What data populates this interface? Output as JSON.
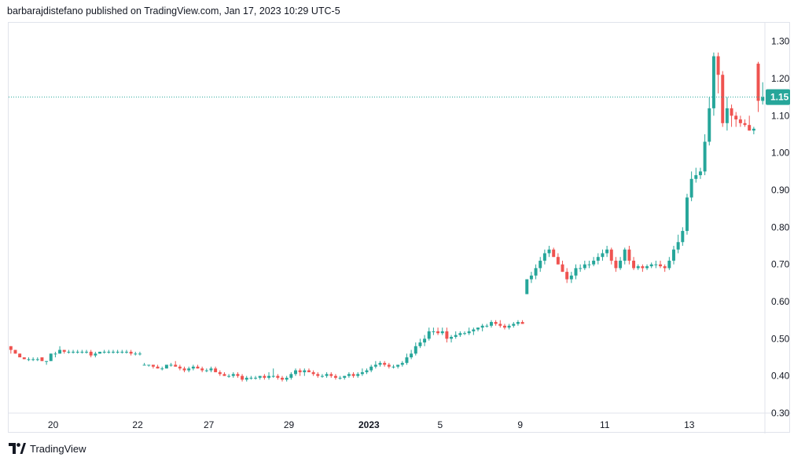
{
  "header": {
    "published": "barbarajdistefano published on TradingView.com, Jan 17, 2023 10:29 UTC-5"
  },
  "footer": {
    "brand": "TradingView",
    "logo_text": "TV"
  },
  "colors": {
    "up": "#26a69a",
    "down": "#ef5350",
    "price_line": "#26a69a",
    "text": "#131722",
    "grid": "#e0e3eb"
  },
  "chart_data": {
    "type": "candlestick",
    "title": "",
    "ylim": [
      0.3,
      1.35
    ],
    "y_ticks": [
      "1.30",
      "1.20",
      "1.10",
      "1.00",
      "0.90",
      "0.80",
      "0.70",
      "0.60",
      "0.50",
      "0.40",
      "0.30"
    ],
    "x_ticks": [
      {
        "label": "20",
        "pos": 10,
        "bold": false
      },
      {
        "label": "22",
        "pos": 29,
        "bold": false
      },
      {
        "label": "27",
        "pos": 45,
        "bold": false
      },
      {
        "label": "29",
        "pos": 63,
        "bold": false
      },
      {
        "label": "2023",
        "pos": 81,
        "bold": true
      },
      {
        "label": "5",
        "pos": 97,
        "bold": false
      },
      {
        "label": "9",
        "pos": 115,
        "bold": false
      },
      {
        "label": "11",
        "pos": 134,
        "bold": false
      },
      {
        "label": "13",
        "pos": 153,
        "bold": false
      }
    ],
    "last_price": 1.15,
    "last_price_label": "1.15",
    "x_range": [
      0,
      170
    ],
    "candles": [
      [
        0.48,
        0.48,
        0.46,
        0.47
      ],
      [
        0.47,
        0.47,
        0.46,
        0.46
      ],
      [
        0.46,
        0.46,
        0.45,
        0.45
      ],
      [
        0.45,
        0.45,
        0.445,
        0.445
      ],
      [
        0.445,
        0.45,
        0.44,
        0.445
      ],
      [
        0.445,
        0.45,
        0.44,
        0.445
      ],
      [
        0.445,
        0.45,
        0.44,
        0.445
      ],
      [
        0.45,
        0.45,
        0.44,
        0.44
      ],
      [
        0.44,
        0.44,
        0.43,
        0.44
      ],
      [
        0.44,
        0.46,
        0.44,
        0.46
      ],
      [
        0.46,
        0.465,
        0.45,
        0.46
      ],
      [
        0.46,
        0.48,
        0.46,
        0.47
      ],
      [
        0.47,
        0.47,
        0.46,
        0.465
      ],
      [
        0.465,
        0.47,
        0.46,
        0.465
      ],
      [
        0.465,
        0.47,
        0.46,
        0.465
      ],
      [
        0.465,
        0.47,
        0.46,
        0.465
      ],
      [
        0.465,
        0.47,
        0.46,
        0.465
      ],
      [
        0.465,
        0.47,
        0.46,
        0.465
      ],
      [
        0.465,
        0.47,
        0.45,
        0.455
      ],
      [
        0.455,
        0.465,
        0.45,
        0.46
      ],
      [
        0.46,
        0.465,
        0.46,
        0.465
      ],
      [
        0.465,
        0.47,
        0.46,
        0.465
      ],
      [
        0.465,
        0.47,
        0.46,
        0.465
      ],
      [
        0.465,
        0.47,
        0.46,
        0.465
      ],
      [
        0.465,
        0.47,
        0.46,
        0.465
      ],
      [
        0.465,
        0.47,
        0.46,
        0.465
      ],
      [
        0.465,
        0.47,
        0.46,
        0.465
      ],
      [
        0.465,
        0.47,
        0.455,
        0.46
      ],
      [
        0.46,
        0.465,
        0.455,
        0.46
      ],
      [
        0.46,
        0.465,
        0.455,
        0.46
      ],
      [
        0.43,
        0.435,
        0.43,
        0.43
      ],
      [
        0.43,
        0.43,
        0.425,
        0.43
      ],
      [
        0.43,
        0.43,
        0.42,
        0.425
      ],
      [
        0.425,
        0.43,
        0.42,
        0.42
      ],
      [
        0.42,
        0.425,
        0.415,
        0.42
      ],
      [
        0.42,
        0.43,
        0.42,
        0.43
      ],
      [
        0.43,
        0.435,
        0.425,
        0.43
      ],
      [
        0.43,
        0.44,
        0.425,
        0.425
      ],
      [
        0.425,
        0.43,
        0.415,
        0.42
      ],
      [
        0.42,
        0.425,
        0.41,
        0.415
      ],
      [
        0.415,
        0.425,
        0.41,
        0.42
      ],
      [
        0.42,
        0.43,
        0.415,
        0.425
      ],
      [
        0.425,
        0.43,
        0.42,
        0.42
      ],
      [
        0.42,
        0.425,
        0.41,
        0.415
      ],
      [
        0.415,
        0.42,
        0.41,
        0.415
      ],
      [
        0.415,
        0.425,
        0.41,
        0.42
      ],
      [
        0.42,
        0.425,
        0.41,
        0.41
      ],
      [
        0.41,
        0.415,
        0.4,
        0.405
      ],
      [
        0.405,
        0.41,
        0.4,
        0.4
      ],
      [
        0.4,
        0.405,
        0.395,
        0.4
      ],
      [
        0.4,
        0.41,
        0.395,
        0.405
      ],
      [
        0.405,
        0.41,
        0.395,
        0.4
      ],
      [
        0.4,
        0.405,
        0.385,
        0.39
      ],
      [
        0.39,
        0.4,
        0.385,
        0.395
      ],
      [
        0.395,
        0.4,
        0.39,
        0.395
      ],
      [
        0.395,
        0.4,
        0.39,
        0.395
      ],
      [
        0.395,
        0.4,
        0.39,
        0.4
      ],
      [
        0.4,
        0.405,
        0.39,
        0.395
      ],
      [
        0.395,
        0.41,
        0.39,
        0.4
      ],
      [
        0.4,
        0.42,
        0.395,
        0.4
      ],
      [
        0.4,
        0.405,
        0.39,
        0.395
      ],
      [
        0.395,
        0.4,
        0.385,
        0.39
      ],
      [
        0.39,
        0.4,
        0.385,
        0.395
      ],
      [
        0.395,
        0.41,
        0.39,
        0.405
      ],
      [
        0.405,
        0.42,
        0.4,
        0.415
      ],
      [
        0.415,
        0.42,
        0.4,
        0.41
      ],
      [
        0.41,
        0.42,
        0.4,
        0.415
      ],
      [
        0.415,
        0.42,
        0.41,
        0.41
      ],
      [
        0.41,
        0.415,
        0.4,
        0.405
      ],
      [
        0.405,
        0.41,
        0.395,
        0.4
      ],
      [
        0.4,
        0.405,
        0.395,
        0.4
      ],
      [
        0.4,
        0.41,
        0.395,
        0.405
      ],
      [
        0.405,
        0.41,
        0.395,
        0.4
      ],
      [
        0.4,
        0.405,
        0.39,
        0.395
      ],
      [
        0.395,
        0.4,
        0.39,
        0.395
      ],
      [
        0.395,
        0.4,
        0.39,
        0.4
      ],
      [
        0.4,
        0.41,
        0.395,
        0.405
      ],
      [
        0.405,
        0.41,
        0.395,
        0.4
      ],
      [
        0.4,
        0.41,
        0.395,
        0.405
      ],
      [
        0.405,
        0.42,
        0.4,
        0.41
      ],
      [
        0.41,
        0.42,
        0.405,
        0.415
      ],
      [
        0.415,
        0.43,
        0.41,
        0.425
      ],
      [
        0.425,
        0.44,
        0.42,
        0.43
      ],
      [
        0.43,
        0.44,
        0.425,
        0.435
      ],
      [
        0.435,
        0.44,
        0.425,
        0.43
      ],
      [
        0.43,
        0.435,
        0.42,
        0.425
      ],
      [
        0.425,
        0.43,
        0.42,
        0.425
      ],
      [
        0.425,
        0.43,
        0.42,
        0.43
      ],
      [
        0.43,
        0.44,
        0.425,
        0.435
      ],
      [
        0.435,
        0.46,
        0.43,
        0.45
      ],
      [
        0.45,
        0.47,
        0.445,
        0.46
      ],
      [
        0.46,
        0.49,
        0.455,
        0.48
      ],
      [
        0.48,
        0.5,
        0.475,
        0.49
      ],
      [
        0.49,
        0.51,
        0.48,
        0.5
      ],
      [
        0.5,
        0.53,
        0.495,
        0.52
      ],
      [
        0.52,
        0.53,
        0.51,
        0.52
      ],
      [
        0.52,
        0.53,
        0.51,
        0.515
      ],
      [
        0.515,
        0.53,
        0.51,
        0.52
      ],
      [
        0.52,
        0.53,
        0.49,
        0.5
      ],
      [
        0.5,
        0.51,
        0.49,
        0.505
      ],
      [
        0.505,
        0.52,
        0.5,
        0.51
      ],
      [
        0.51,
        0.52,
        0.505,
        0.515
      ],
      [
        0.515,
        0.52,
        0.51,
        0.515
      ],
      [
        0.515,
        0.53,
        0.51,
        0.52
      ],
      [
        0.52,
        0.53,
        0.51,
        0.525
      ],
      [
        0.525,
        0.53,
        0.52,
        0.53
      ],
      [
        0.53,
        0.54,
        0.52,
        0.535
      ],
      [
        0.535,
        0.54,
        0.53,
        0.535
      ],
      [
        0.535,
        0.55,
        0.53,
        0.545
      ],
      [
        0.545,
        0.55,
        0.535,
        0.54
      ],
      [
        0.54,
        0.55,
        0.53,
        0.535
      ],
      [
        0.535,
        0.54,
        0.525,
        0.53
      ],
      [
        0.53,
        0.54,
        0.525,
        0.535
      ],
      [
        0.535,
        0.545,
        0.53,
        0.54
      ],
      [
        0.54,
        0.55,
        0.535,
        0.545
      ],
      [
        0.545,
        0.55,
        0.54,
        0.54
      ],
      [
        0.62,
        0.66,
        0.62,
        0.66
      ],
      [
        0.66,
        0.68,
        0.65,
        0.67
      ],
      [
        0.67,
        0.7,
        0.66,
        0.69
      ],
      [
        0.69,
        0.72,
        0.68,
        0.71
      ],
      [
        0.71,
        0.74,
        0.7,
        0.73
      ],
      [
        0.73,
        0.75,
        0.72,
        0.74
      ],
      [
        0.74,
        0.745,
        0.72,
        0.72
      ],
      [
        0.72,
        0.73,
        0.7,
        0.7
      ],
      [
        0.7,
        0.71,
        0.68,
        0.68
      ],
      [
        0.68,
        0.69,
        0.65,
        0.66
      ],
      [
        0.66,
        0.68,
        0.65,
        0.67
      ],
      [
        0.67,
        0.7,
        0.66,
        0.69
      ],
      [
        0.69,
        0.7,
        0.68,
        0.69
      ],
      [
        0.69,
        0.71,
        0.685,
        0.7
      ],
      [
        0.7,
        0.71,
        0.69,
        0.7
      ],
      [
        0.7,
        0.72,
        0.695,
        0.71
      ],
      [
        0.71,
        0.73,
        0.7,
        0.72
      ],
      [
        0.72,
        0.74,
        0.71,
        0.73
      ],
      [
        0.73,
        0.75,
        0.72,
        0.74
      ],
      [
        0.74,
        0.745,
        0.7,
        0.71
      ],
      [
        0.71,
        0.72,
        0.68,
        0.69
      ],
      [
        0.69,
        0.72,
        0.685,
        0.71
      ],
      [
        0.71,
        0.745,
        0.7,
        0.74
      ],
      [
        0.74,
        0.75,
        0.7,
        0.71
      ],
      [
        0.71,
        0.72,
        0.685,
        0.69
      ],
      [
        0.69,
        0.7,
        0.685,
        0.695
      ],
      [
        0.695,
        0.7,
        0.68,
        0.69
      ],
      [
        0.69,
        0.7,
        0.685,
        0.695
      ],
      [
        0.695,
        0.705,
        0.69,
        0.7
      ],
      [
        0.7,
        0.71,
        0.69,
        0.7
      ],
      [
        0.7,
        0.71,
        0.69,
        0.695
      ],
      [
        0.695,
        0.7,
        0.68,
        0.69
      ],
      [
        0.69,
        0.72,
        0.685,
        0.71
      ],
      [
        0.71,
        0.75,
        0.7,
        0.74
      ],
      [
        0.74,
        0.78,
        0.73,
        0.76
      ],
      [
        0.76,
        0.8,
        0.75,
        0.79
      ],
      [
        0.79,
        0.89,
        0.78,
        0.88
      ],
      [
        0.88,
        0.95,
        0.87,
        0.93
      ],
      [
        0.93,
        0.96,
        0.92,
        0.94
      ],
      [
        0.94,
        0.96,
        0.93,
        0.95
      ],
      [
        0.95,
        1.05,
        0.94,
        1.03
      ],
      [
        1.03,
        1.15,
        1.02,
        1.12
      ],
      [
        1.12,
        1.27,
        1.1,
        1.26
      ],
      [
        1.26,
        1.27,
        1.16,
        1.21
      ],
      [
        1.21,
        1.22,
        1.07,
        1.08
      ],
      [
        1.08,
        1.15,
        1.06,
        1.12
      ],
      [
        1.12,
        1.13,
        1.07,
        1.1
      ],
      [
        1.1,
        1.11,
        1.07,
        1.09
      ],
      [
        1.09,
        1.1,
        1.07,
        1.08
      ],
      [
        1.08,
        1.09,
        1.07,
        1.075
      ],
      [
        1.075,
        1.1,
        1.06,
        1.06
      ],
      [
        1.06,
        1.07,
        1.05,
        1.065
      ],
      [
        1.24,
        1.245,
        1.11,
        1.14
      ],
      [
        1.14,
        1.19,
        1.13,
        1.15
      ]
    ]
  }
}
